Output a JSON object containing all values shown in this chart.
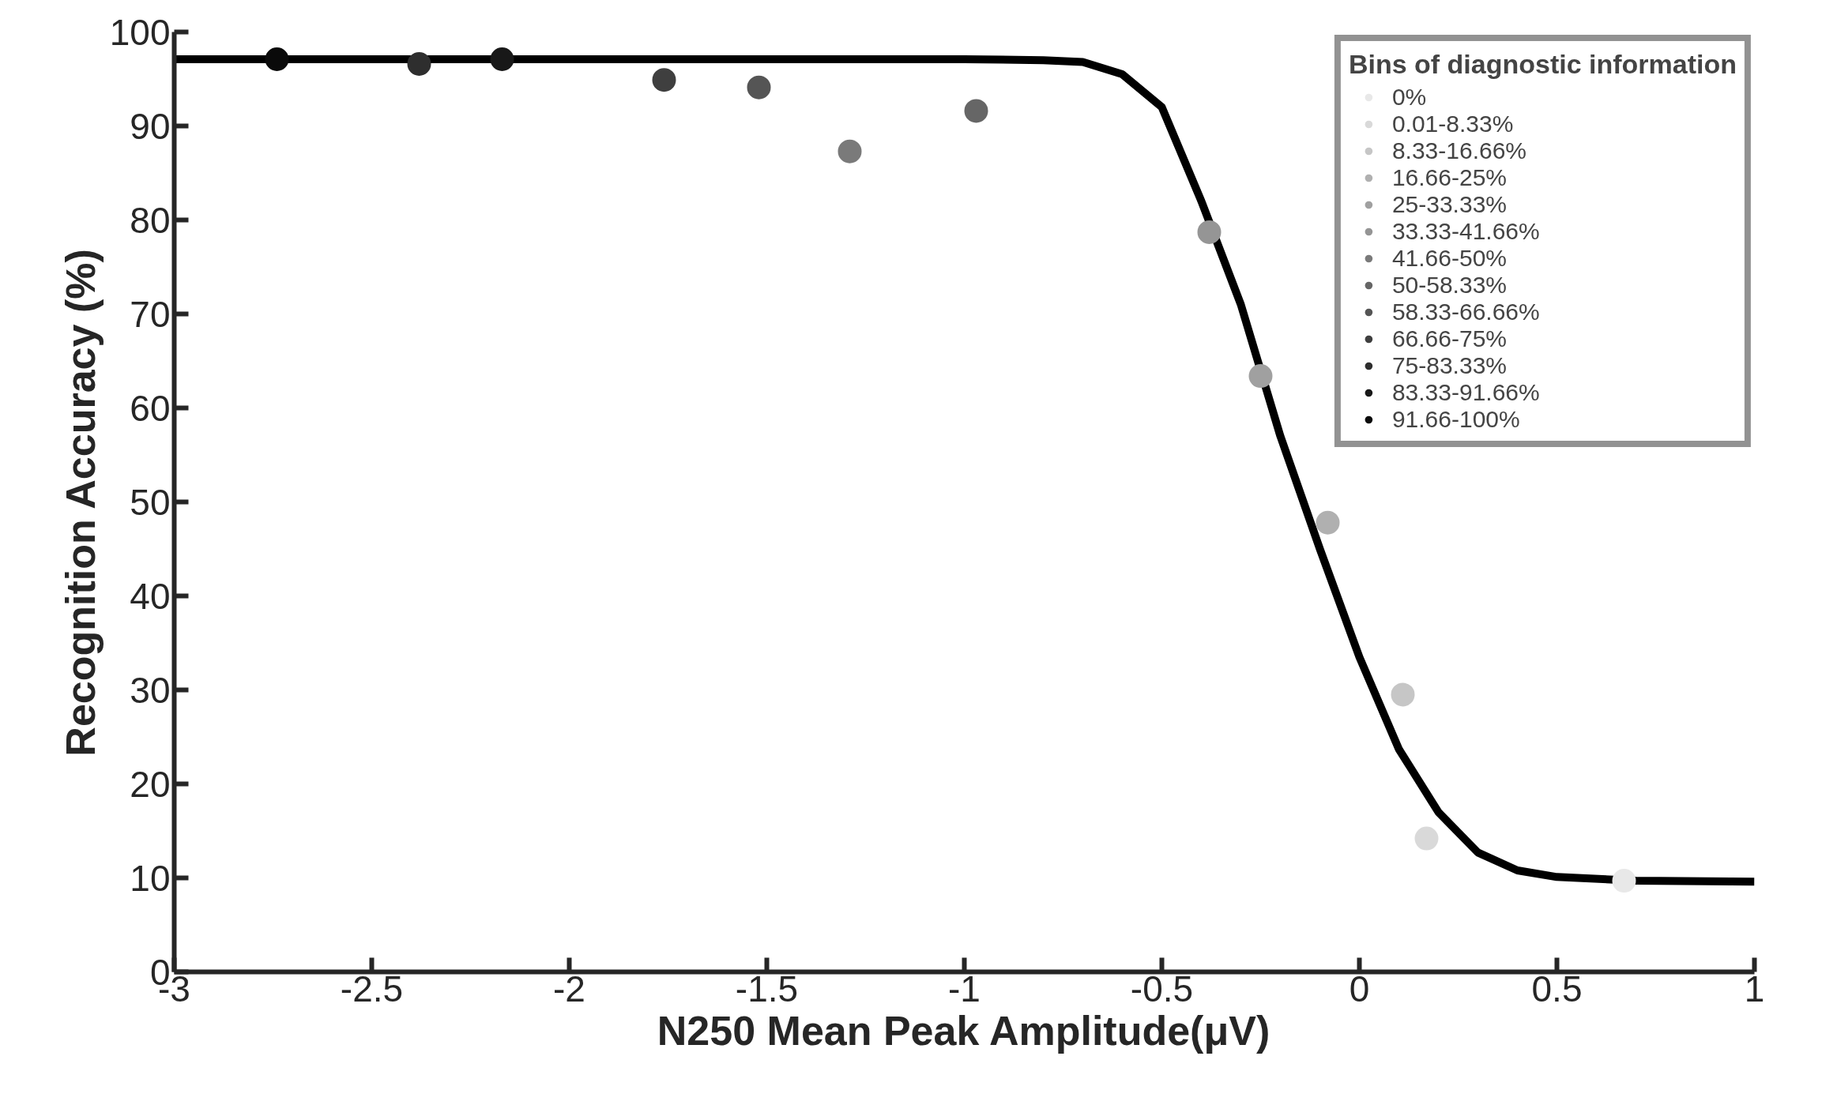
{
  "chart_data": {
    "type": "scatter",
    "xlabel": "N250 Mean Peak Amplitude(μV)",
    "ylabel": "Recognition Accuracy (%)",
    "legend_title": "Bins of diagnostic information",
    "xlim": [
      -3,
      1
    ],
    "xticks": [
      -3,
      -2.5,
      -2,
      -1.5,
      -1,
      -0.5,
      0,
      0.5,
      1
    ],
    "ylim": [
      0,
      100
    ],
    "yticks": [
      0,
      10,
      20,
      30,
      40,
      50,
      60,
      70,
      80,
      90,
      100
    ],
    "grid": false,
    "legend": "top right",
    "marker": "circle",
    "series": [
      {
        "name": "0%",
        "color": "#e8e8e8",
        "x": [
          0.67
        ],
        "values": [
          9.7
        ]
      },
      {
        "name": "0.01-8.33%",
        "color": "#d9d9d9",
        "x": [
          0.17
        ],
        "values": [
          14.2
        ]
      },
      {
        "name": "8.33-16.66%",
        "color": "#c6c6c6",
        "x": [
          0.11
        ],
        "values": [
          29.5
        ]
      },
      {
        "name": "16.66-25%",
        "color": "#b0b0b0",
        "x": [
          -0.08
        ],
        "values": [
          47.8
        ]
      },
      {
        "name": "25-33.33%",
        "color": "#a0a0a0",
        "x": [
          -0.25
        ],
        "values": [
          63.4
        ]
      },
      {
        "name": "33.33-41.66%",
        "color": "#959595",
        "x": [
          -0.38
        ],
        "values": [
          78.7
        ]
      },
      {
        "name": "41.66-50%",
        "color": "#7a7a7a",
        "x": [
          -1.29
        ],
        "values": [
          87.3
        ]
      },
      {
        "name": "50-58.33%",
        "color": "#666666",
        "x": [
          -0.97
        ],
        "values": [
          91.6
        ]
      },
      {
        "name": "58.33-66.66%",
        "color": "#555555",
        "x": [
          -1.52
        ],
        "values": [
          94.1
        ]
      },
      {
        "name": "66.66-75%",
        "color": "#3f3f3f",
        "x": [
          -1.76
        ],
        "values": [
          94.9
        ]
      },
      {
        "name": "75-83.33%",
        "color": "#2e2e2e",
        "x": [
          -2.38
        ],
        "values": [
          96.6
        ]
      },
      {
        "name": "83.33-91.66%",
        "color": "#181818",
        "x": [
          -2.17
        ],
        "values": [
          97.1
        ]
      },
      {
        "name": "91.66-100%",
        "color": "#0a0a0a",
        "x": [
          -2.74
        ],
        "values": [
          97.1
        ]
      },
      {
        "type": "line",
        "color": "#000000",
        "marker": "none",
        "x": [
          -3,
          -1,
          -0.8,
          -0.7,
          -0.6,
          -0.5,
          -0.4,
          -0.3,
          -0.2,
          -0.1,
          0,
          0.1,
          0.2,
          0.3,
          0.4,
          0.5,
          0.7,
          1
        ],
        "values": [
          97.1,
          97.1,
          97.0,
          96.8,
          95.5,
          92,
          82,
          71,
          57,
          45,
          33.5,
          23.7,
          17,
          12.7,
          10.8,
          10.1,
          9.7,
          9.6
        ]
      }
    ]
  }
}
